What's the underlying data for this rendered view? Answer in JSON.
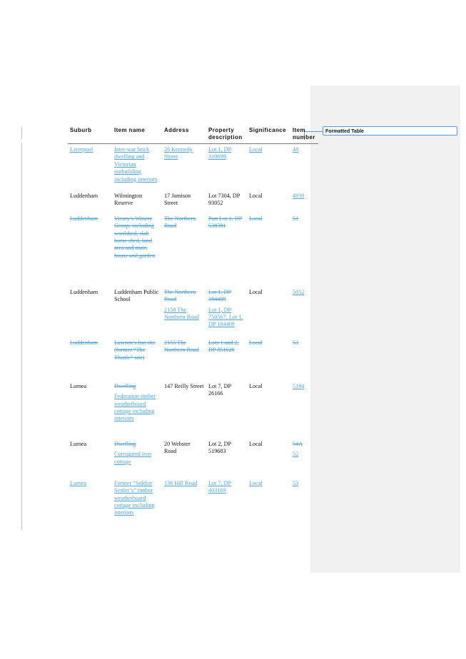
{
  "comment": {
    "label": "Formatted Table"
  },
  "table": {
    "headers": [
      "Suburb",
      "Item name",
      "Address",
      "Property description",
      "Significance",
      "Item number"
    ],
    "rows": [
      {
        "cells": [
          [
            {
              "text": "Liverpool",
              "style": "ins"
            }
          ],
          [
            {
              "text": "Inter-war brick dwelling and Victorian outbuilding including interiors",
              "style": "ins"
            }
          ],
          [
            {
              "text": "26 Kennedy Street",
              "style": "ins"
            }
          ],
          [
            {
              "text": "Lot 1, DP 310699",
              "style": "ins"
            }
          ],
          [
            {
              "text": "Local",
              "style": "ins"
            }
          ],
          [
            {
              "text": "48",
              "style": "ins"
            }
          ]
        ]
      },
      {
        "cells": [
          [
            {
              "text": "Luddenham",
              "style": "plain"
            }
          ],
          [
            {
              "text": "Wilmington Reserve",
              "style": "plain"
            }
          ],
          [
            {
              "text": "17 Jamison Street",
              "style": "plain"
            }
          ],
          [
            {
              "text": "Lot 7304, DP 93052",
              "style": "plain"
            }
          ],
          [
            {
              "text": "Local",
              "style": "plain"
            }
          ],
          [
            {
              "text": "4930",
              "style": "ins"
            }
          ]
        ]
      },
      {
        "cells": [
          [
            {
              "text": "Luddenham",
              "style": "del"
            }
          ],
          [
            {
              "text": "Vicary’s Winery Group, including woolshed, slab horse shed, land area and main house and garden",
              "style": "del"
            }
          ],
          [
            {
              "text": "The Northern Road",
              "style": "del"
            }
          ],
          [
            {
              "text": "Part Lot 1, DP 538381",
              "style": "del"
            }
          ],
          [
            {
              "text": "Local",
              "style": "del"
            }
          ],
          [
            {
              "text": "51",
              "style": "del"
            }
          ]
        ]
      },
      {
        "cells": [
          [
            {
              "text": "Luddenham",
              "style": "plain"
            }
          ],
          [
            {
              "text": "Luddenham Public School",
              "style": "plain"
            }
          ],
          [
            {
              "text": "The Northern Road",
              "style": "del"
            },
            {
              "text": "2158 The Northern Road",
              "style": "ins"
            }
          ],
          [
            {
              "text": "Lot 1, DP 184409",
              "style": "del"
            },
            {
              "text": "Lot 1, DP 750567; Lot 1, DP 184409",
              "style": "ins"
            }
          ],
          [
            {
              "text": "Local",
              "style": "plain"
            }
          ],
          [
            {
              "text": "5052",
              "style": "ins"
            }
          ]
        ]
      },
      {
        "cells": [
          [
            {
              "text": "Luddenham",
              "style": "del"
            }
          ],
          [
            {
              "text": "Lawson’s Inn site (former “The Thistle” site)",
              "style": "del"
            }
          ],
          [
            {
              "text": "2155 The Northern Road",
              "style": "del"
            }
          ],
          [
            {
              "text": "Lots 1 and 2, DP 851626",
              "style": "del"
            }
          ],
          [
            {
              "text": "Local",
              "style": "del"
            }
          ],
          [
            {
              "text": "53",
              "style": "del"
            }
          ]
        ]
      },
      {
        "cells": [
          [
            {
              "text": "Lurnea",
              "style": "plain"
            }
          ],
          [
            {
              "text": "Dwelling",
              "style": "del"
            },
            {
              "text": "Federation timber weatherboard cottage including interiors",
              "style": "ins"
            }
          ],
          [
            {
              "text": "147 Reilly Street",
              "style": "plain"
            }
          ],
          [
            {
              "text": "Lot 7, DP 26166",
              "style": "plain"
            }
          ],
          [
            {
              "text": "Local",
              "style": "plain"
            }
          ],
          [
            {
              "text": "5184",
              "style": "ins"
            }
          ]
        ]
      },
      {
        "cells": [
          [
            {
              "text": "Lurnea",
              "style": "plain"
            }
          ],
          [
            {
              "text": "Dwelling",
              "style": "del"
            },
            {
              "text": "Corrugated iron cottage",
              "style": "ins"
            }
          ],
          [
            {
              "text": "20 Webster Road",
              "style": "plain"
            }
          ],
          [
            {
              "text": "Lot 2, DP 519683",
              "style": "plain"
            }
          ],
          [
            {
              "text": "Local",
              "style": "plain"
            }
          ],
          [
            {
              "text": "54A",
              "style": "del"
            },
            {
              "text": "52",
              "style": "ins"
            }
          ]
        ]
      },
      {
        "cells": [
          [
            {
              "text": "Lurnea",
              "style": "ins"
            }
          ],
          [
            {
              "text": "Former “Soldier Settler’s” timber weatherboard cottage including interiors",
              "style": "ins"
            }
          ],
          [
            {
              "text": "136 Hill Road",
              "style": "ins"
            }
          ],
          [
            {
              "text": "Lot 7, DP 403169",
              "style": "ins"
            }
          ],
          [
            {
              "text": "Local",
              "style": "ins"
            }
          ],
          [
            {
              "text": "53",
              "style": "ins"
            }
          ]
        ]
      }
    ]
  }
}
